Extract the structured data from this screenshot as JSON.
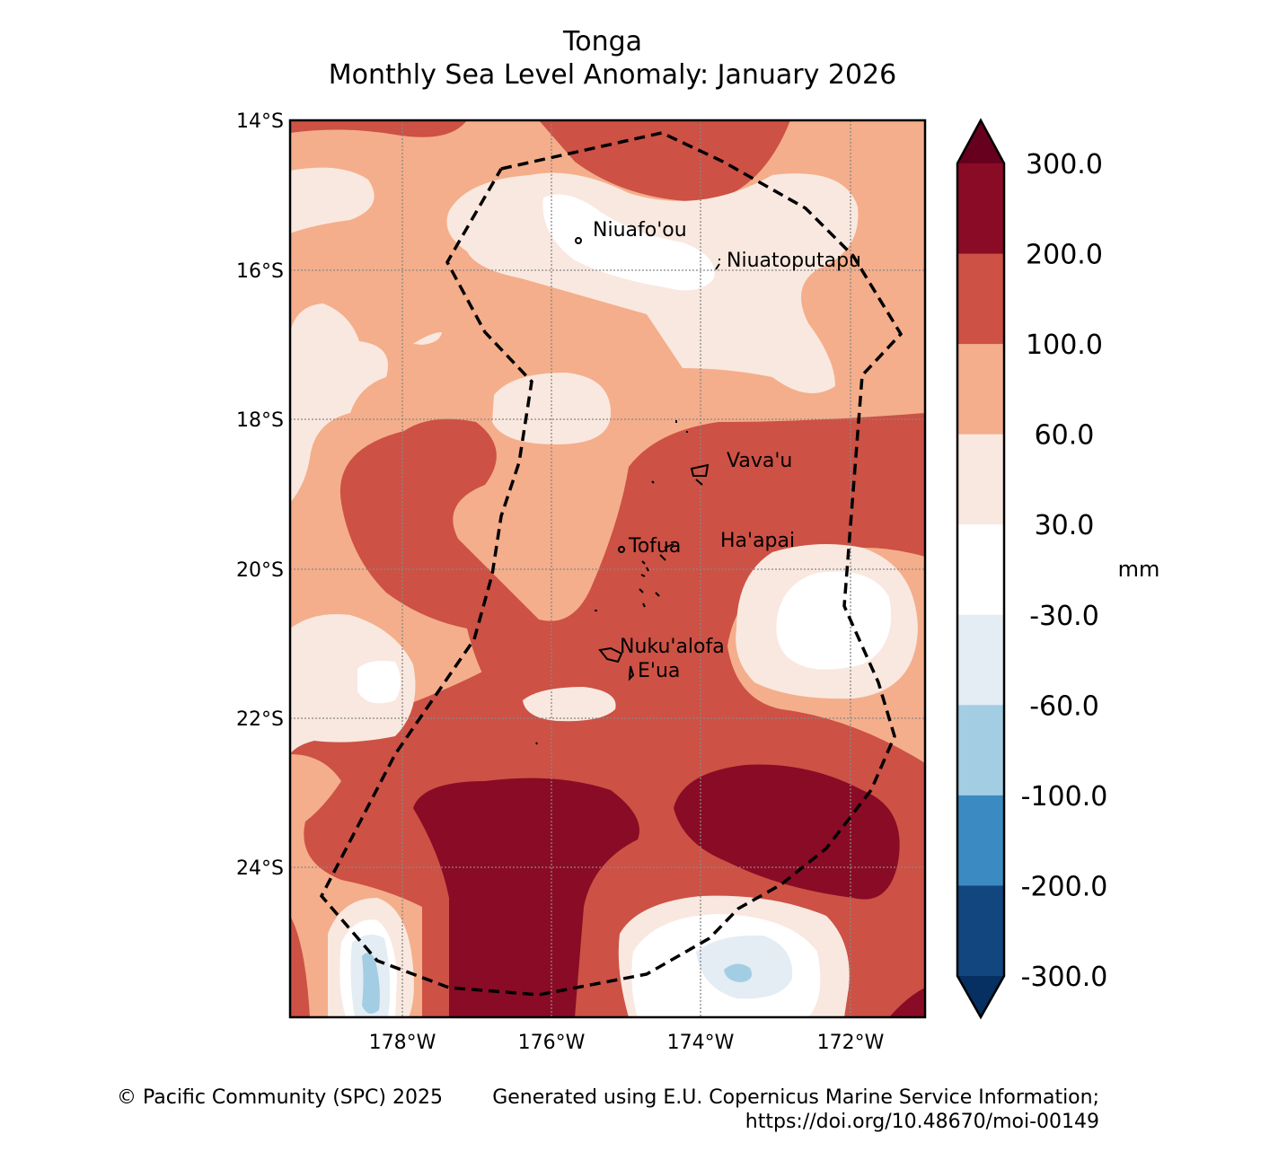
{
  "title": {
    "line1": "Tonga",
    "line2": "Monthly Sea Level Anomaly: January 2026"
  },
  "footer": {
    "copyright": "© Pacific Community (SPC) 2025",
    "source_line1": "Generated using E.U. Copernicus Marine Service Information;",
    "source_line2": "https://doi.org/10.48670/moi-00149"
  },
  "chart_data": {
    "type": "heatmap",
    "title": "Tonga Monthly Sea Level Anomaly: January 2026",
    "lon_range": [
      -179.5,
      -171.0
    ],
    "lat_range": [
      -26.0,
      -14.0
    ],
    "lat_ticks": [
      "14°S",
      "16°S",
      "18°S",
      "20°S",
      "22°S",
      "24°S"
    ],
    "lon_ticks": [
      "178°W",
      "176°W",
      "174°W",
      "172°W"
    ],
    "grid": true,
    "colorbar": {
      "unit": "mm",
      "labels": [
        "300.0",
        "200.0",
        "100.0",
        "60.0",
        "30.0",
        "-30.0",
        "-60.0",
        "-100.0",
        "-200.0",
        "-300.0"
      ],
      "over_color": "#67001f",
      "under_color": "#053061",
      "colors": [
        "#8a0b25",
        "#cd5145",
        "#f4ae8b",
        "#f9e8df",
        "#ffffff",
        "#e4ecf4",
        "#a3cde3",
        "#3b8bc2",
        "#11467f"
      ]
    },
    "places": [
      "Niuafo'ou",
      "Niuatoputapu",
      "Vava'u",
      "Tofua",
      "Ha'apai",
      "Nuku'alofa",
      "E'ua"
    ]
  }
}
